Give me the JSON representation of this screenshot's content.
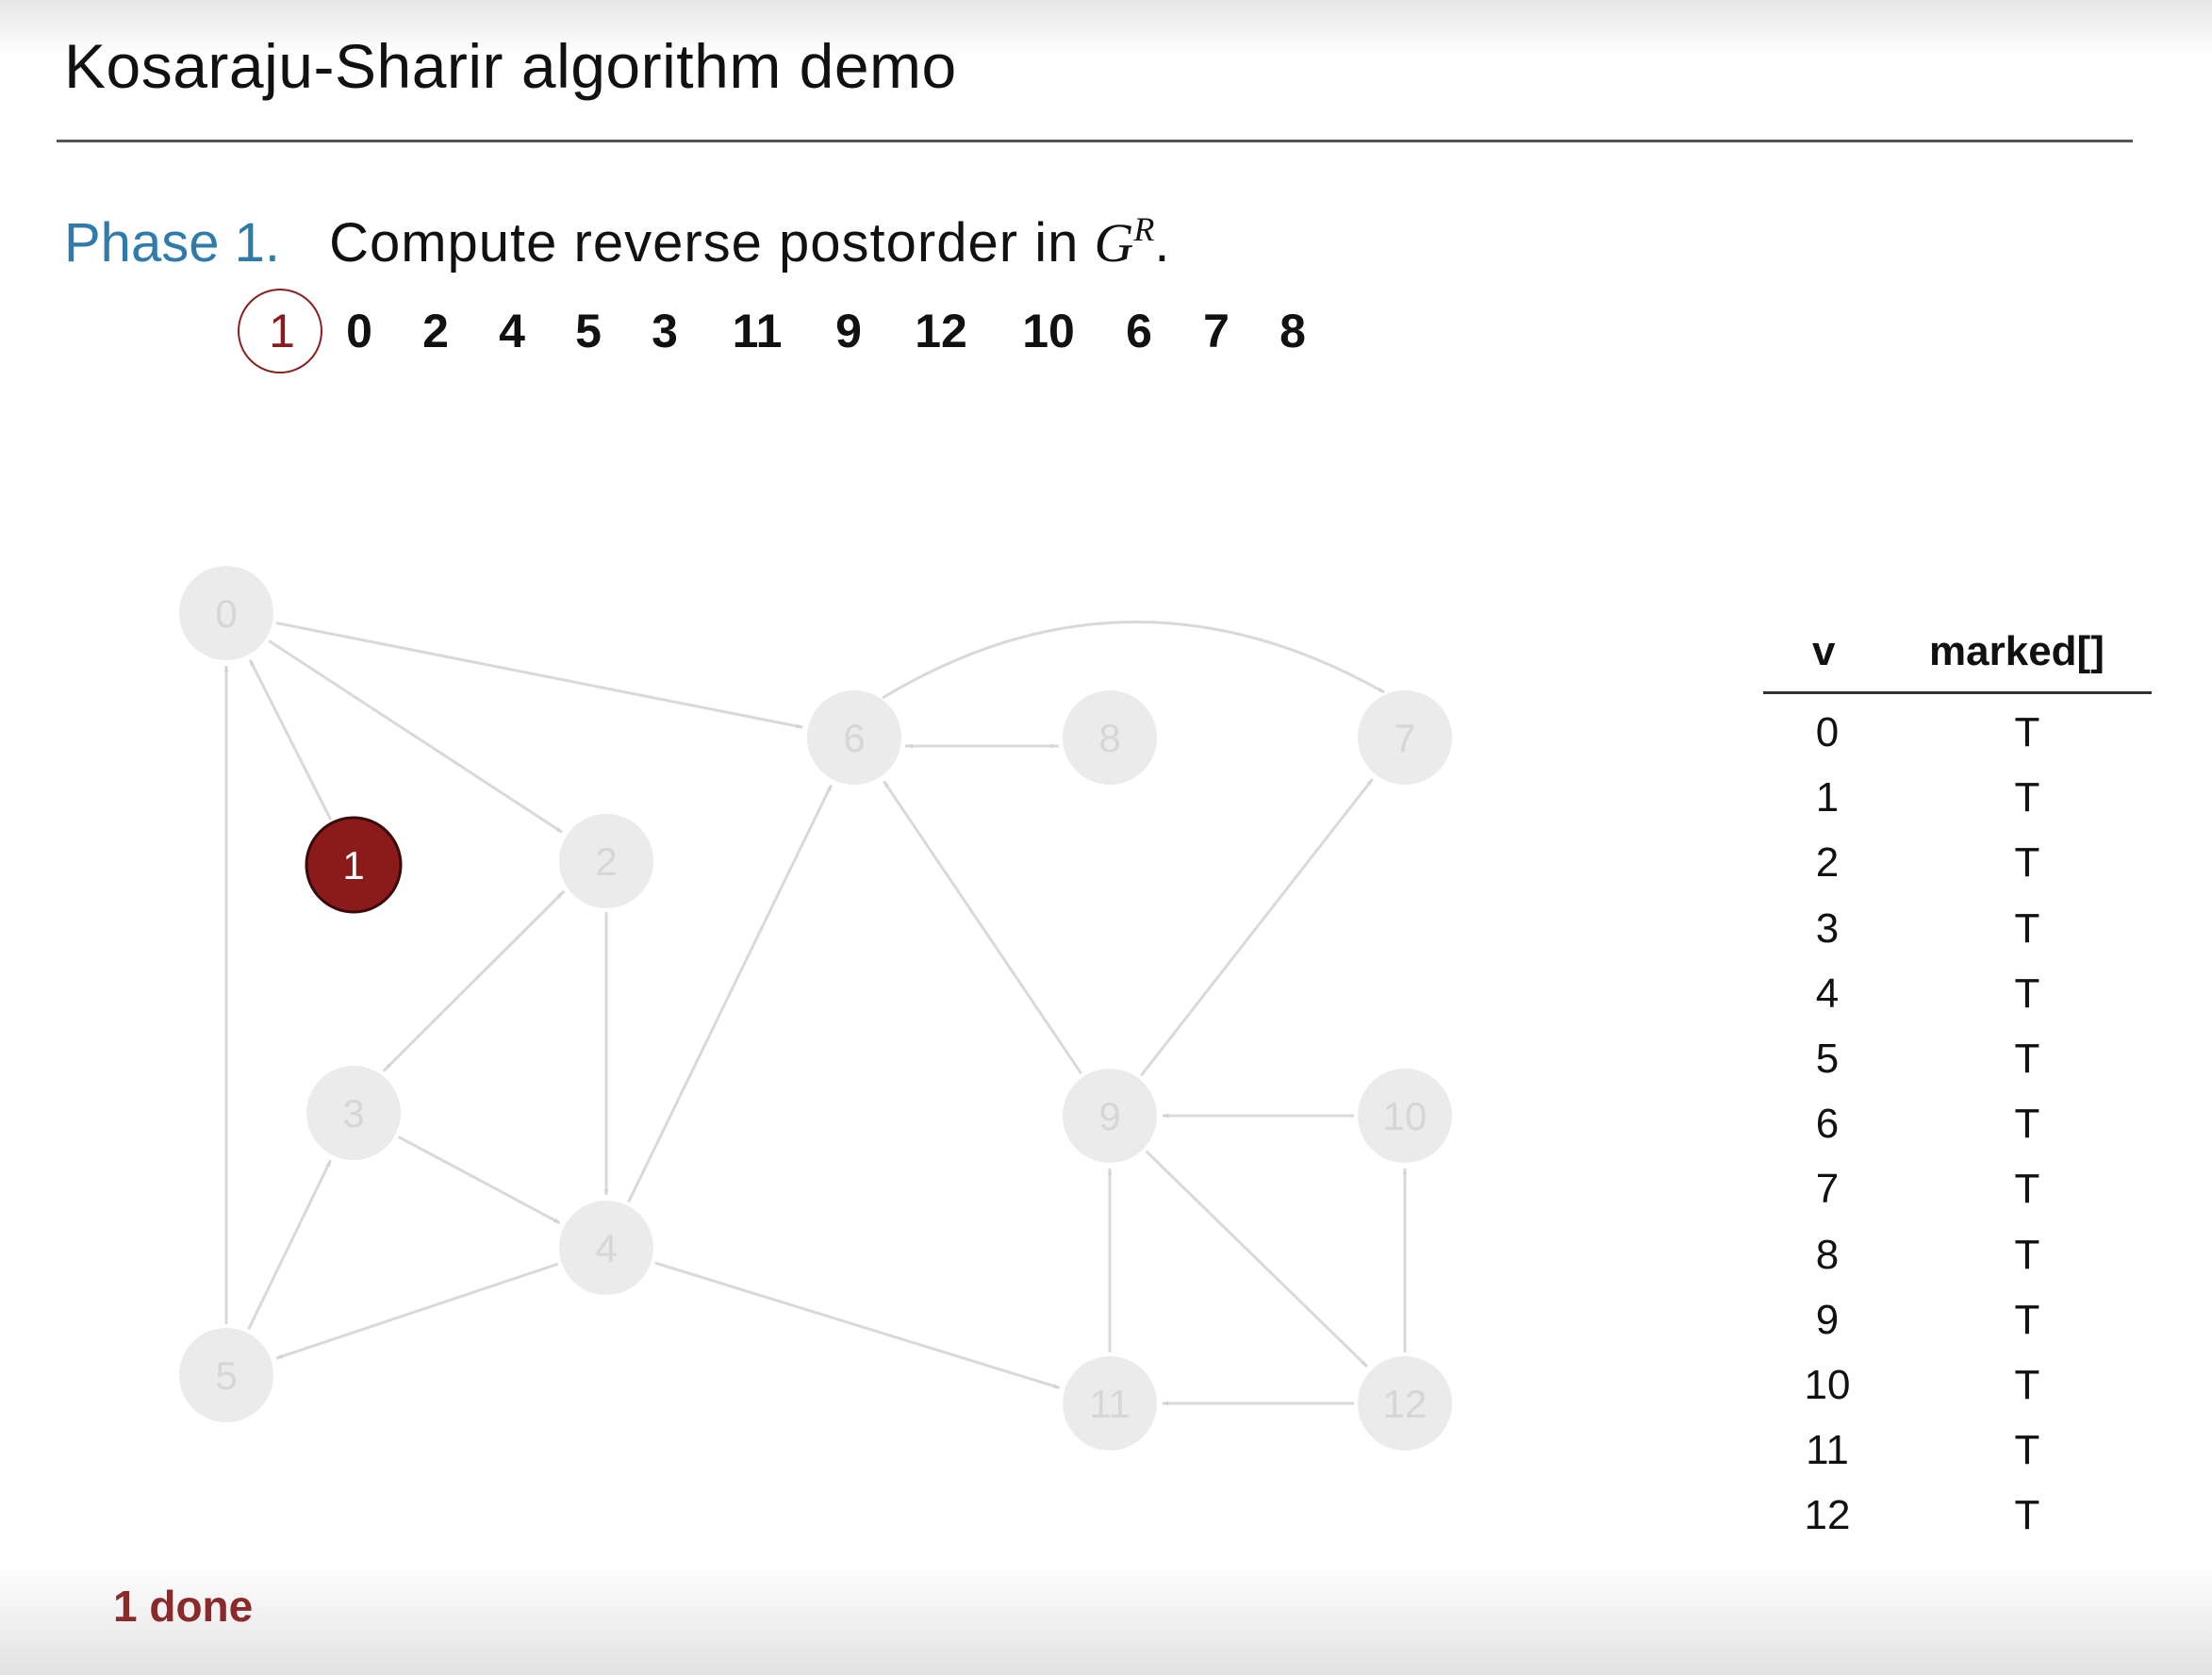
{
  "title": "Kosaraju-Sharir algorithm demo",
  "phase": {
    "label": "Phase 1.",
    "description": "Compute reverse postorder in",
    "graph_symbol": "G",
    "superscript": "R",
    "period": "."
  },
  "order": [
    "1",
    "0",
    "2",
    "4",
    "5",
    "3",
    "11",
    "9",
    "12",
    "10",
    "6",
    "7",
    "8"
  ],
  "graph": {
    "nodes": [
      {
        "id": "0",
        "state": "done"
      },
      {
        "id": "1",
        "state": "current"
      },
      {
        "id": "2",
        "state": "done"
      },
      {
        "id": "3",
        "state": "done"
      },
      {
        "id": "4",
        "state": "done"
      },
      {
        "id": "5",
        "state": "done"
      },
      {
        "id": "6",
        "state": "done"
      },
      {
        "id": "7",
        "state": "done"
      },
      {
        "id": "8",
        "state": "done"
      },
      {
        "id": "9",
        "state": "done"
      },
      {
        "id": "10",
        "state": "done"
      },
      {
        "id": "11",
        "state": "done"
      },
      {
        "id": "12",
        "state": "done"
      }
    ],
    "edges": [
      [
        "0",
        "6"
      ],
      [
        "0",
        "2"
      ],
      [
        "1",
        "0"
      ],
      [
        "5",
        "0"
      ],
      [
        "2",
        "3"
      ],
      [
        "3",
        "2"
      ],
      [
        "2",
        "4"
      ],
      [
        "3",
        "4"
      ],
      [
        "5",
        "3"
      ],
      [
        "4",
        "5"
      ],
      [
        "4",
        "6"
      ],
      [
        "4",
        "11"
      ],
      [
        "6",
        "8"
      ],
      [
        "8",
        "6"
      ],
      [
        "6",
        "7"
      ],
      [
        "9",
        "6"
      ],
      [
        "9",
        "7"
      ],
      [
        "10",
        "9"
      ],
      [
        "11",
        "9"
      ],
      [
        "9",
        "12"
      ],
      [
        "12",
        "11"
      ],
      [
        "12",
        "10"
      ]
    ]
  },
  "table": {
    "headers": {
      "v": "v",
      "marked": "marked[]"
    },
    "rows": [
      {
        "v": "0",
        "marked": "T"
      },
      {
        "v": "1",
        "marked": "T"
      },
      {
        "v": "2",
        "marked": "T"
      },
      {
        "v": "3",
        "marked": "T"
      },
      {
        "v": "4",
        "marked": "T"
      },
      {
        "v": "5",
        "marked": "T"
      },
      {
        "v": "6",
        "marked": "T"
      },
      {
        "v": "7",
        "marked": "T"
      },
      {
        "v": "8",
        "marked": "T"
      },
      {
        "v": "9",
        "marked": "T"
      },
      {
        "v": "10",
        "marked": "T"
      },
      {
        "v": "11",
        "marked": "T"
      },
      {
        "v": "12",
        "marked": "T"
      }
    ]
  },
  "status": "1 done",
  "colors": {
    "current_node": "#8b1a1a",
    "done_node": "#ebebeb",
    "done_label": "#d6d6d6",
    "edge": "#d9d9d9",
    "phase_label": "#2f7bab",
    "status_text": "#8b2a2a"
  }
}
